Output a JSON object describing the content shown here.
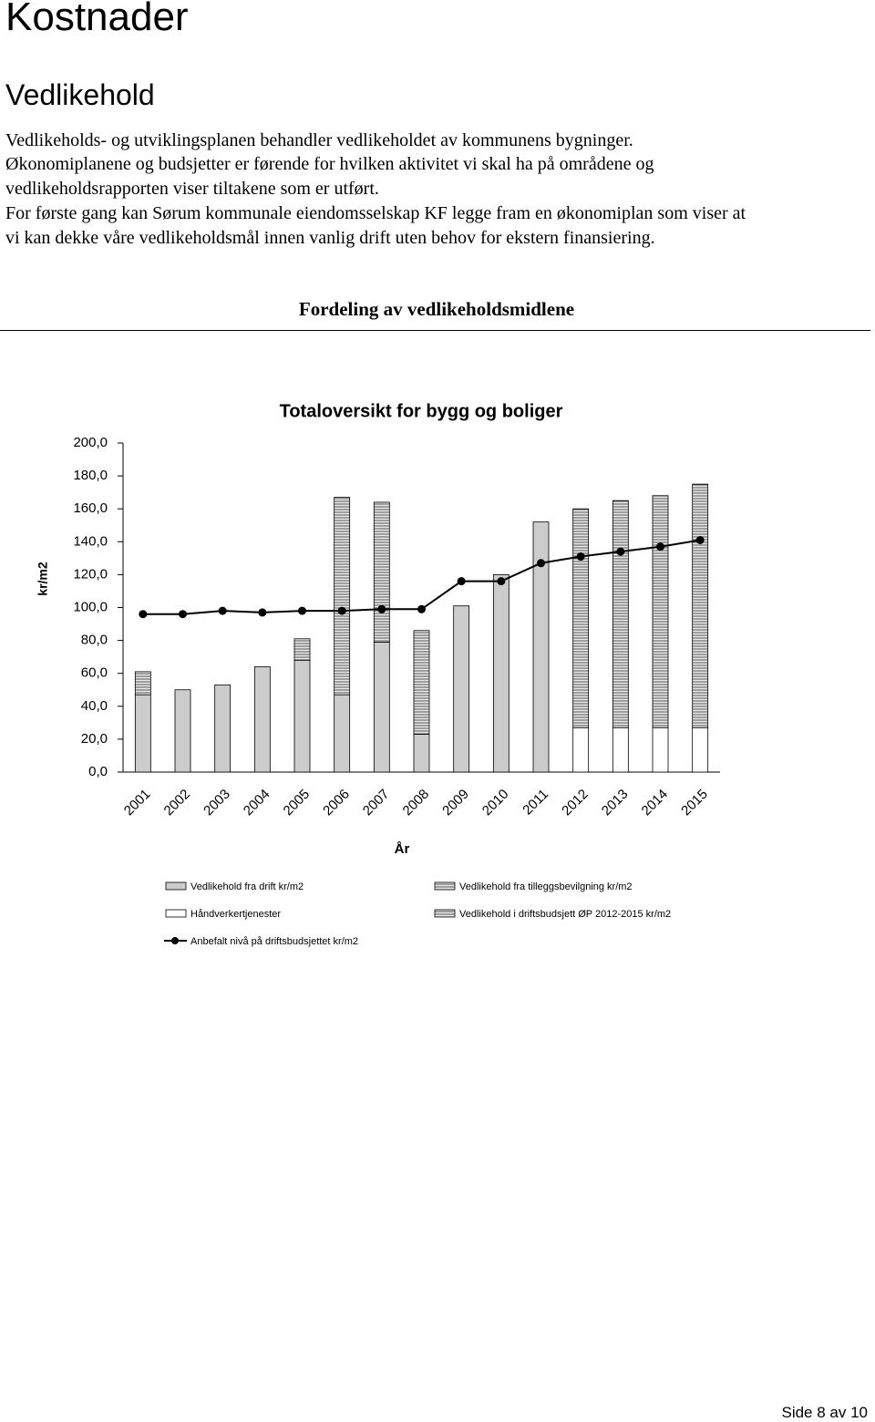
{
  "page": {
    "heading": "Kostnader",
    "subheading": "Vedlikehold",
    "lines": [
      "Vedlikeholds- og utviklingsplanen behandler vedlikeholdet av kommunens bygninger.",
      "Økonomiplanene og budsjetter er førende for hvilken aktivitet vi skal ha på områdene og",
      "vedlikeholdsrapporten viser tiltakene som er utført.",
      "For første gang kan Sørum kommunale eiendomsselskap KF legge fram en økonomiplan som viser at",
      "vi kan dekke våre vedlikeholdsmål innen vanlig drift uten behov for ekstern finansiering."
    ],
    "section_title": "Fordeling av vedlikeholdsmidlene",
    "footer": "Side 8 av 10"
  },
  "chart_data": {
    "type": "bar",
    "stacked": true,
    "title": "Totaloversikt for bygg og boliger",
    "x_label": "År",
    "y_label": "kr/m2",
    "categories": [
      "2001",
      "2002",
      "2003",
      "2004",
      "2005",
      "2006",
      "2007",
      "2008",
      "2009",
      "2010",
      "2011",
      "2012",
      "2013",
      "2014",
      "2015"
    ],
    "ylim": [
      0,
      200
    ],
    "yticks": [
      {
        "value": 0,
        "label": "0,0"
      },
      {
        "value": 20,
        "label": "20,0"
      },
      {
        "value": 40,
        "label": "40,0"
      },
      {
        "value": 60,
        "label": "60,0"
      },
      {
        "value": 80,
        "label": "80,0"
      },
      {
        "value": 100,
        "label": "100,0"
      },
      {
        "value": 120,
        "label": "120,0"
      },
      {
        "value": 140,
        "label": "140,0"
      },
      {
        "value": 160,
        "label": "160,0"
      },
      {
        "value": 180,
        "label": "180,0"
      },
      {
        "value": 200,
        "label": "200,0"
      }
    ],
    "series": [
      {
        "name": "Vedlikehold fra drift kr/m2",
        "color": "#cccccc",
        "values": [
          47,
          50,
          53,
          64,
          68,
          47,
          79,
          23,
          101,
          120,
          152,
          null,
          null,
          null,
          null
        ]
      },
      {
        "name": "Håndverkertjenester",
        "color": "#ffffff",
        "values": [
          null,
          null,
          null,
          null,
          null,
          null,
          null,
          null,
          null,
          null,
          null,
          27,
          27,
          27,
          27
        ]
      },
      {
        "name": "Vedlikehold fra tilleggsbevilgning kr/m2",
        "color": "#999999",
        "values": [
          14,
          null,
          null,
          null,
          13,
          120,
          85,
          63,
          null,
          null,
          null,
          null,
          null,
          null,
          null
        ]
      },
      {
        "name": "Vedlikehold i driftsbudsjett ØP 2012-2015 kr/m2",
        "color": "#b0b0b0",
        "values": [
          null,
          null,
          null,
          null,
          null,
          null,
          null,
          null,
          null,
          null,
          null,
          133,
          138,
          141,
          148
        ]
      },
      {
        "name": "Anbefalt nivå på driftsbudsjettet kr/m2",
        "type": "line",
        "color": "#000000",
        "values": [
          96,
          96,
          98,
          97,
          98,
          98,
          99,
          99,
          116,
          116,
          127,
          131,
          134,
          137,
          141
        ]
      }
    ]
  }
}
